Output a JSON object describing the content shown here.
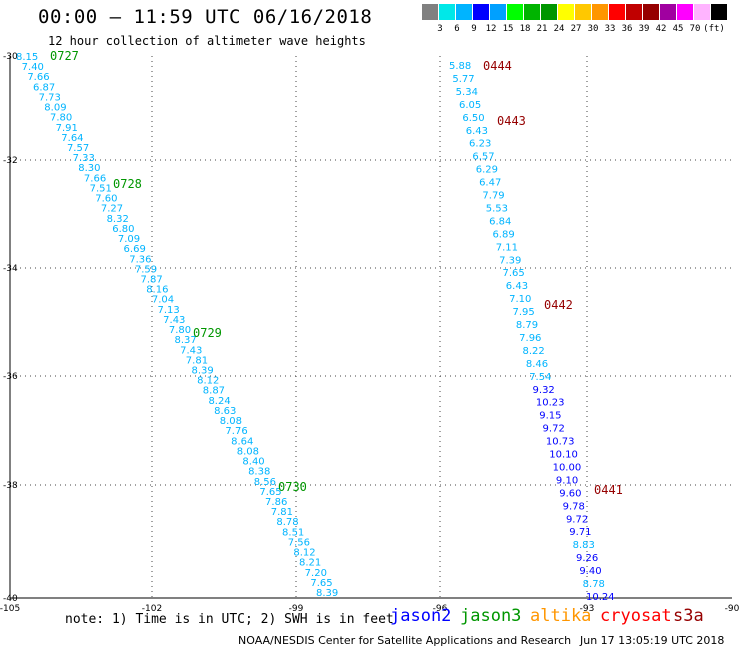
{
  "header": {
    "title": "00:00 — 11:59 UTC 06/16/2018",
    "subtitle": "12 hour collection of altimeter wave heights"
  },
  "scale": {
    "unit": "(ft)",
    "colors": [
      "#808080",
      "#00e8e8",
      "#00b4ff",
      "#0000ff",
      "#00a0ff",
      "#00ff00",
      "#00b400",
      "#009600",
      "#ffff00",
      "#ffc800",
      "#ff9600",
      "#ff0000",
      "#c00000",
      "#960000",
      "#a000a0",
      "#ff00ff",
      "#ffb4ff",
      "#000000"
    ],
    "labels": [
      "3",
      "6",
      "9",
      "12",
      "15",
      "18",
      "21",
      "24",
      "27",
      "30",
      "33",
      "36",
      "39",
      "42",
      "45",
      "70"
    ]
  },
  "axes": {
    "lat_labels": [
      "-30",
      "-32",
      "-34",
      "-36",
      "-38",
      "-40"
    ],
    "lon_labels": [
      "-105",
      "-102",
      "-99",
      "-96",
      "-93",
      "-90"
    ]
  },
  "swaths": {
    "west": {
      "values": [
        "8.15",
        "7.40",
        "7.66",
        "6.87",
        "7.73",
        "8.09",
        "7.80",
        "7.91",
        "7.64",
        "7.57",
        "7.33",
        "8.30",
        "7.66",
        "7.51",
        "7.60",
        "7.27",
        "8.32",
        "6.80",
        "7.09",
        "6.69",
        "7.36",
        "7.59",
        "7.87",
        "8.16",
        "7.04",
        "7.13",
        "7.43",
        "7.80",
        "8.37",
        "7.43",
        "7.81",
        "8.39",
        "8.12",
        "8.87",
        "8.24",
        "8.63",
        "8.08",
        "7.76",
        "8.64",
        "8.08",
        "8.40",
        "8.38",
        "8.56",
        "7.65",
        "7.86",
        "7.81",
        "8.78",
        "8.51",
        "7.56",
        "8.12",
        "8.21",
        "7.20",
        "7.65",
        "8.39"
      ],
      "times": [
        "0727",
        "0728",
        "0729",
        "0730"
      ]
    },
    "east": {
      "values": [
        "5.88",
        "5.77",
        "5.34",
        "6.05",
        "6.50",
        "6.43",
        "6.23",
        "6.57",
        "6.29",
        "6.47",
        "7.79",
        "5.53",
        "6.84",
        "6.89",
        "7.11",
        "7.39",
        "7.65",
        "6.43",
        "7.10",
        "7.95",
        "8.79",
        "7.96",
        "8.22",
        "8.46",
        "7.54",
        "9.32",
        "10.23",
        "9.15",
        "9.72",
        "10.73",
        "10.10",
        "10.00",
        "9.10",
        "9.60",
        "9.78",
        "9.72",
        "9.71",
        "8.83",
        "9.26",
        "9.40",
        "8.78",
        "10.24"
      ],
      "times": [
        "0444",
        "0443",
        "0442",
        "0441"
      ]
    }
  },
  "legend": {
    "note": "note: 1) Time is in UTC; 2) SWH is in feet",
    "satellites": [
      {
        "name": "jason2",
        "color": "#0000ff"
      },
      {
        "name": "jason3",
        "color": "#009600"
      },
      {
        "name": "altika",
        "color": "#ff9600"
      },
      {
        "name": "cryosat",
        "color": "#ff0000"
      },
      {
        "name": "s3a",
        "color": "#960000"
      }
    ]
  },
  "footer": {
    "credit": "NOAA/NESDIS Center for Satellite Applications and Research",
    "timestamp": "Jun 17 13:05:19 UTC 2018"
  }
}
